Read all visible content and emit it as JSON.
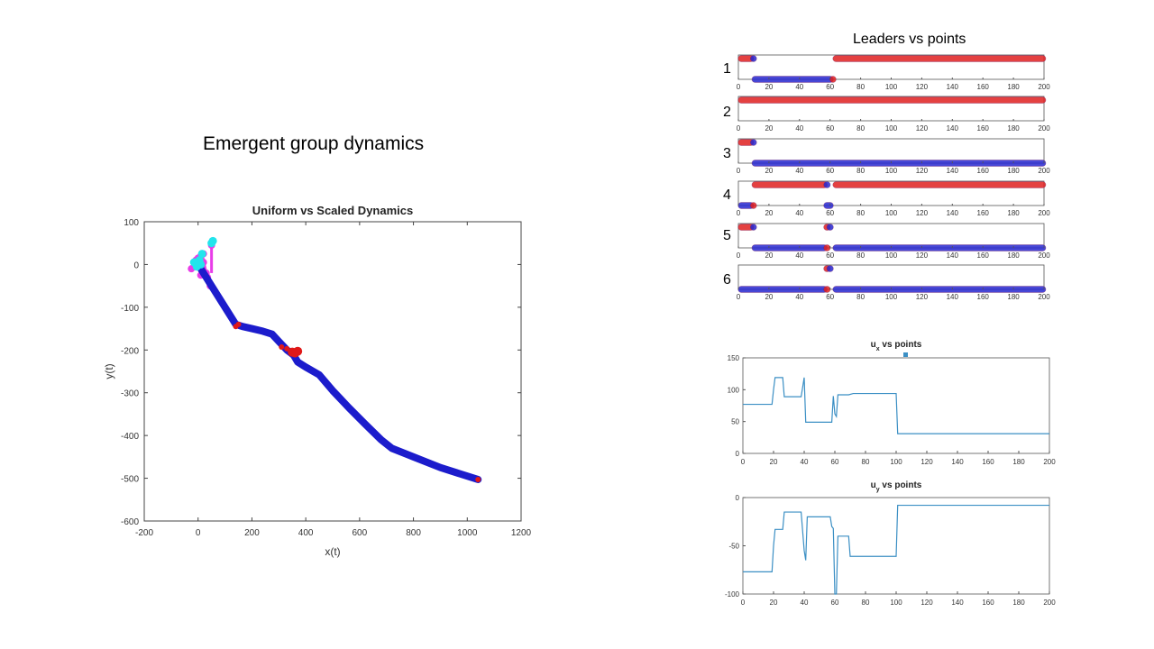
{
  "slide": {
    "title": "Emergent group dynamics",
    "leaders_title": "Leaders vs points"
  },
  "colors": {
    "trajectory_scaled": "#1c1ccc",
    "trajectory_uniform": "#e01818",
    "start_magenta": "#e83ce8",
    "start_cyan": "#22e4ec",
    "leader_red": "#e02020",
    "point_blue": "#2828d0",
    "control_line": "#3b8fc4"
  },
  "chart_data": [
    {
      "id": "trajectory",
      "type": "line",
      "title": "Uniform vs Scaled Dynamics",
      "xlabel": "x(t)",
      "ylabel": "y(t)",
      "xlim": [
        -200,
        1200
      ],
      "ylim": [
        -600,
        100
      ],
      "xticks": [
        -200,
        0,
        200,
        400,
        600,
        800,
        1000,
        1200
      ],
      "yticks": [
        100,
        0,
        -100,
        -200,
        -300,
        -400,
        -500,
        -600
      ],
      "series": [
        {
          "name": "scaled",
          "x": [
            10,
            20,
            40,
            60,
            90,
            120,
            140,
            165,
            200,
            240,
            275,
            300,
            330,
            355,
            370,
            400,
            450,
            500,
            560,
            620,
            680,
            720,
            800,
            900,
            1000,
            1040
          ],
          "y": [
            -10,
            -20,
            -40,
            -60,
            -90,
            -120,
            -140,
            -145,
            -150,
            -156,
            -163,
            -180,
            -200,
            -212,
            -228,
            -240,
            -258,
            -295,
            -335,
            -373,
            -410,
            -430,
            -450,
            -475,
            -495,
            -503
          ]
        },
        {
          "name": "uniform",
          "x": [
            140,
            150,
            310,
            330,
            350,
            360,
            370,
            1040
          ],
          "y": [
            -145,
            -140,
            -193,
            -197,
            -205,
            -207,
            -203,
            -503
          ]
        },
        {
          "name": "start-magenta",
          "x": [
            -25,
            -15,
            -8,
            0,
            10,
            20,
            30,
            35,
            40,
            45,
            50,
            10,
            20
          ],
          "y": [
            -10,
            -5,
            10,
            15,
            20,
            5,
            -20,
            -30,
            -40,
            -50,
            45,
            -25,
            25
          ]
        },
        {
          "name": "start-cyan",
          "x": [
            -15,
            -5,
            5,
            15,
            55,
            50,
            10
          ],
          "y": [
            5,
            -5,
            10,
            25,
            55,
            50,
            0
          ]
        }
      ]
    },
    {
      "id": "leaders",
      "type": "scatter",
      "title": "Leaders vs points",
      "xlim": [
        0,
        200
      ],
      "xticks": [
        0,
        20,
        40,
        60,
        80,
        100,
        120,
        140,
        160,
        180,
        200
      ],
      "rows": [
        {
          "label": "1",
          "top": [
            {
              "from": 1,
              "to": 9,
              "color": "red"
            },
            {
              "from": 9,
              "to": 10,
              "color": "blue"
            },
            {
              "from": 63,
              "to": 200,
              "color": "red"
            }
          ],
          "bottom": [
            {
              "from": 10,
              "to": 61,
              "color": "blue"
            },
            {
              "from": 61,
              "to": 62,
              "color": "red"
            }
          ]
        },
        {
          "label": "2",
          "top": [
            {
              "from": 1,
              "to": 200,
              "color": "red"
            }
          ],
          "bottom": []
        },
        {
          "label": "3",
          "top": [
            {
              "from": 1,
              "to": 9,
              "color": "red"
            },
            {
              "from": 9,
              "to": 10,
              "color": "blue"
            }
          ],
          "bottom": [
            {
              "from": 10,
              "to": 200,
              "color": "blue"
            }
          ]
        },
        {
          "label": "4",
          "top": [
            {
              "from": 10,
              "to": 57,
              "color": "red"
            },
            {
              "from": 57,
              "to": 59,
              "color": "blue"
            },
            {
              "from": 63,
              "to": 200,
              "color": "red"
            }
          ],
          "bottom": [
            {
              "from": 1,
              "to": 9,
              "color": "blue"
            },
            {
              "from": 9,
              "to": 10,
              "color": "red"
            },
            {
              "from": 57,
              "to": 61,
              "color": "blue"
            }
          ]
        },
        {
          "label": "5",
          "top": [
            {
              "from": 1,
              "to": 9,
              "color": "red"
            },
            {
              "from": 9,
              "to": 10,
              "color": "blue"
            },
            {
              "from": 57,
              "to": 59,
              "color": "red"
            },
            {
              "from": 59,
              "to": 61,
              "color": "blue"
            }
          ],
          "bottom": [
            {
              "from": 10,
              "to": 57,
              "color": "blue"
            },
            {
              "from": 57,
              "to": 59,
              "color": "red"
            },
            {
              "from": 63,
              "to": 200,
              "color": "blue"
            }
          ]
        },
        {
          "label": "6",
          "top": [
            {
              "from": 57,
              "to": 59,
              "color": "red"
            },
            {
              "from": 59,
              "to": 61,
              "color": "blue"
            }
          ],
          "bottom": [
            {
              "from": 1,
              "to": 57,
              "color": "blue"
            },
            {
              "from": 57,
              "to": 59,
              "color": "red"
            },
            {
              "from": 63,
              "to": 200,
              "color": "blue"
            }
          ]
        }
      ]
    },
    {
      "id": "ux",
      "type": "line",
      "title_main": "u",
      "title_sub": "x",
      "title_rest": " vs points",
      "xlim": [
        0,
        200
      ],
      "ylim": [
        0,
        150
      ],
      "xticks": [
        0,
        20,
        40,
        60,
        80,
        100,
        120,
        140,
        160,
        180,
        200
      ],
      "yticks": [
        0,
        50,
        100,
        150
      ],
      "x": [
        0,
        19,
        20,
        21,
        26,
        27,
        37,
        38,
        40,
        41,
        58,
        59,
        60,
        61,
        62,
        64,
        69,
        72,
        100,
        101,
        200
      ],
      "y": [
        77,
        77,
        100,
        119,
        119,
        89,
        89,
        89,
        119,
        49,
        49,
        90,
        62,
        58,
        92,
        92,
        92,
        94,
        94,
        31,
        31
      ]
    },
    {
      "id": "uy",
      "type": "line",
      "title_main": "u",
      "title_sub": "y",
      "title_rest": " vs points",
      "xlim": [
        0,
        200
      ],
      "ylim": [
        -100,
        0
      ],
      "xticks": [
        0,
        20,
        40,
        60,
        80,
        100,
        120,
        140,
        160,
        180,
        200
      ],
      "yticks": [
        0,
        -50,
        -100
      ],
      "x": [
        0,
        19,
        20,
        21,
        26,
        27,
        37,
        38,
        40,
        41,
        42,
        57,
        58,
        59,
        60,
        61,
        62,
        63,
        64,
        69,
        70,
        100,
        101,
        200
      ],
      "y": [
        -77,
        -77,
        -50,
        -33,
        -33,
        -15,
        -15,
        -15,
        -55,
        -65,
        -20,
        -20,
        -30,
        -32,
        -100,
        -100,
        -40,
        -40,
        -40,
        -40,
        -61,
        -61,
        -8,
        -8
      ]
    }
  ]
}
